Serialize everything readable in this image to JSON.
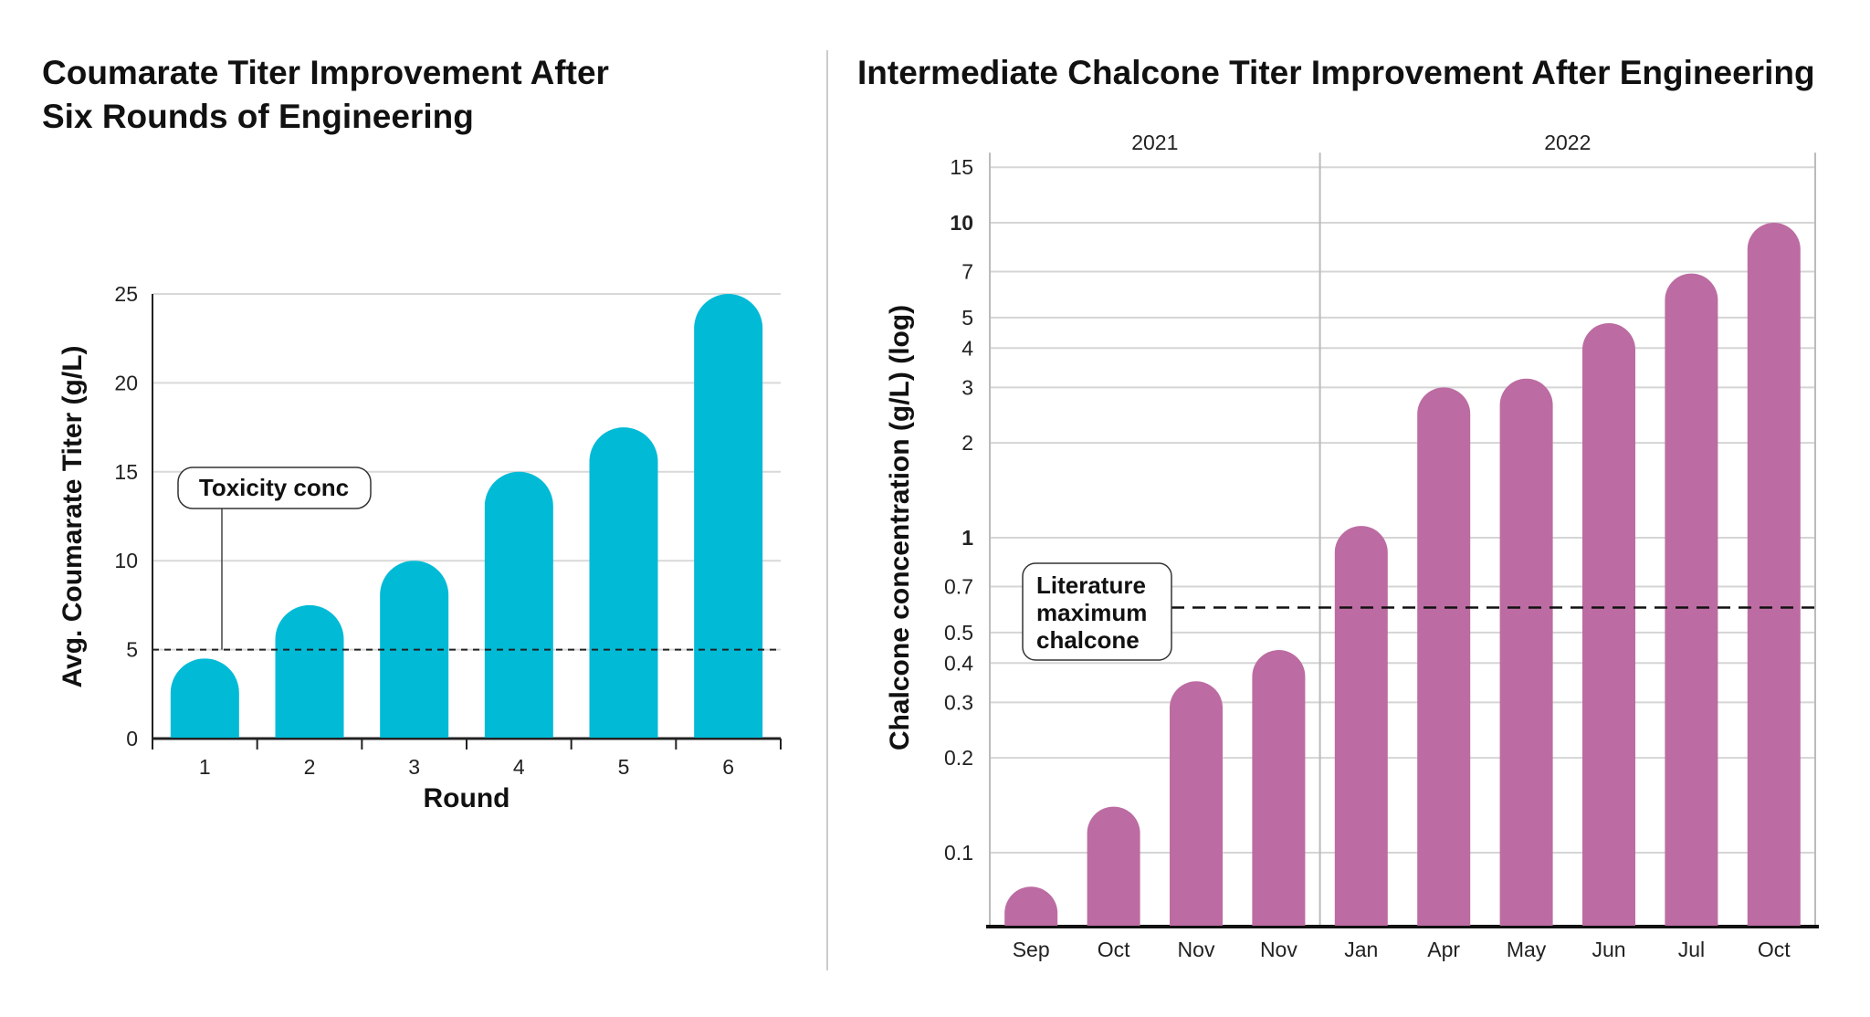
{
  "chart_data": [
    {
      "type": "bar",
      "title_lines": [
        "Coumarate Titer Improvement After",
        "Six Rounds of Engineering"
      ],
      "xlabel": "Round",
      "ylabel": "Avg. Coumarate Titer (g/L)",
      "categories": [
        "1",
        "2",
        "3",
        "4",
        "5",
        "6"
      ],
      "values": [
        4.5,
        7.5,
        10,
        15,
        17.5,
        25
      ],
      "ylim": [
        0,
        25
      ],
      "yticks": [
        0,
        5,
        10,
        15,
        20,
        25
      ],
      "grid": true,
      "color": "#00BAD6",
      "reference_line": {
        "value": 5,
        "label": "Toxicity conc",
        "style": "dashed"
      }
    },
    {
      "type": "bar",
      "title": "Intermediate Chalcone Titer Improvement After Engineering",
      "ylabel": "Chalcone concentration (g/L) (log)",
      "yscale": "log",
      "categories": [
        "Sep",
        "Oct",
        "Nov",
        "Nov",
        "Jan",
        "Apr",
        "May",
        "Jun",
        "Jul",
        "Oct"
      ],
      "groups": [
        {
          "label": "2021",
          "count": 4
        },
        {
          "label": "2022",
          "count": 6
        }
      ],
      "values": [
        0.078,
        0.14,
        0.35,
        0.44,
        1.09,
        3.0,
        3.2,
        4.8,
        6.9,
        10
      ],
      "ylim": [
        0.06,
        15
      ],
      "yticks": [
        "15",
        "10",
        "7",
        "5",
        "4",
        "3",
        "2",
        "1",
        "0.7",
        "0.5",
        "0.4",
        "0.3",
        "0.2",
        "0.1"
      ],
      "bold_ticks": [
        "10",
        "1"
      ],
      "grid": true,
      "color": "#BC6CA2",
      "reference_line": {
        "value": 0.6,
        "label_lines": [
          "Literature",
          "maximum",
          "chalcone"
        ],
        "style": "dashed"
      }
    }
  ]
}
